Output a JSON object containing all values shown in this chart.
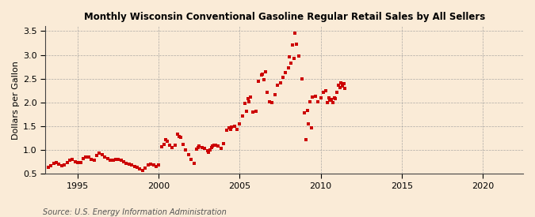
{
  "title": "Monthly Wisconsin Conventional Gasoline Regular Retail Sales by All Sellers",
  "ylabel": "Dollars per Gallon",
  "source": "Source: U.S. Energy Information Administration",
  "background_color": "#faebd7",
  "marker_color": "#cc0000",
  "xlim": [
    1993.0,
    2022.5
  ],
  "ylim": [
    0.5,
    3.6
  ],
  "yticks": [
    0.5,
    1.0,
    1.5,
    2.0,
    2.5,
    3.0,
    3.5
  ],
  "xticks": [
    1995,
    2000,
    2005,
    2010,
    2015,
    2020
  ],
  "data": [
    [
      1993.17,
      0.63
    ],
    [
      1993.33,
      0.67
    ],
    [
      1993.5,
      0.72
    ],
    [
      1993.67,
      0.74
    ],
    [
      1993.83,
      0.7
    ],
    [
      1994.0,
      0.67
    ],
    [
      1994.17,
      0.68
    ],
    [
      1994.33,
      0.73
    ],
    [
      1994.5,
      0.79
    ],
    [
      1994.67,
      0.8
    ],
    [
      1994.83,
      0.76
    ],
    [
      1995.0,
      0.73
    ],
    [
      1995.17,
      0.74
    ],
    [
      1995.33,
      0.82
    ],
    [
      1995.5,
      0.86
    ],
    [
      1995.67,
      0.85
    ],
    [
      1995.83,
      0.81
    ],
    [
      1996.0,
      0.79
    ],
    [
      1996.17,
      0.88
    ],
    [
      1996.33,
      0.94
    ],
    [
      1996.5,
      0.9
    ],
    [
      1996.67,
      0.86
    ],
    [
      1996.83,
      0.82
    ],
    [
      1997.0,
      0.79
    ],
    [
      1997.17,
      0.78
    ],
    [
      1997.33,
      0.8
    ],
    [
      1997.5,
      0.8
    ],
    [
      1997.67,
      0.79
    ],
    [
      1997.83,
      0.75
    ],
    [
      1998.0,
      0.72
    ],
    [
      1998.17,
      0.7
    ],
    [
      1998.33,
      0.69
    ],
    [
      1998.5,
      0.66
    ],
    [
      1998.67,
      0.63
    ],
    [
      1998.83,
      0.61
    ],
    [
      1999.0,
      0.57
    ],
    [
      1999.17,
      0.62
    ],
    [
      1999.33,
      0.69
    ],
    [
      1999.5,
      0.71
    ],
    [
      1999.67,
      0.68
    ],
    [
      1999.83,
      0.66
    ],
    [
      2000.0,
      0.69
    ],
    [
      2000.17,
      1.07
    ],
    [
      2000.33,
      1.12
    ],
    [
      2000.5,
      1.18
    ],
    [
      2000.67,
      1.1
    ],
    [
      2000.83,
      1.06
    ],
    [
      2001.0,
      1.1
    ],
    [
      2001.17,
      1.33
    ],
    [
      2001.33,
      1.27
    ],
    [
      2001.5,
      1.12
    ],
    [
      2001.67,
      1.0
    ],
    [
      2001.83,
      0.9
    ],
    [
      2002.0,
      0.8
    ],
    [
      2002.17,
      0.72
    ],
    [
      2002.33,
      1.02
    ],
    [
      2002.5,
      1.08
    ],
    [
      2002.67,
      1.06
    ],
    [
      2002.83,
      1.03
    ],
    [
      2003.0,
      0.99
    ],
    [
      2003.08,
      0.96
    ],
    [
      2003.17,
      1.0
    ],
    [
      2003.25,
      1.05
    ],
    [
      2003.33,
      1.09
    ],
    [
      2003.5,
      1.1
    ],
    [
      2003.67,
      1.08
    ],
    [
      2003.83,
      1.04
    ],
    [
      2004.0,
      1.13
    ],
    [
      2004.17,
      1.42
    ],
    [
      2004.33,
      1.46
    ],
    [
      2004.5,
      1.48
    ],
    [
      2004.67,
      1.5
    ],
    [
      2004.83,
      1.44
    ],
    [
      2005.0,
      1.55
    ],
    [
      2005.17,
      1.72
    ],
    [
      2005.33,
      1.98
    ],
    [
      2005.5,
      2.08
    ],
    [
      2005.67,
      2.12
    ],
    [
      2005.83,
      1.8
    ],
    [
      2006.0,
      1.82
    ],
    [
      2006.17,
      2.44
    ],
    [
      2006.33,
      2.58
    ],
    [
      2006.5,
      2.48
    ],
    [
      2006.67,
      2.22
    ],
    [
      2006.83,
      2.01
    ],
    [
      2007.0,
      2.0
    ],
    [
      2007.17,
      2.17
    ],
    [
      2007.33,
      2.37
    ],
    [
      2007.5,
      2.42
    ],
    [
      2007.67,
      2.52
    ],
    [
      2007.83,
      2.62
    ],
    [
      2008.0,
      2.72
    ],
    [
      2008.17,
      2.82
    ],
    [
      2008.33,
      2.93
    ],
    [
      2008.42,
      3.45
    ],
    [
      2008.5,
      3.22
    ],
    [
      2008.67,
      2.98
    ],
    [
      2008.83,
      2.5
    ],
    [
      2009.0,
      1.78
    ],
    [
      2009.17,
      1.83
    ],
    [
      2009.33,
      2.02
    ],
    [
      2009.5,
      2.12
    ],
    [
      2009.67,
      2.13
    ],
    [
      2009.83,
      2.02
    ],
    [
      2010.0,
      2.1
    ],
    [
      2010.17,
      2.22
    ],
    [
      2010.33,
      2.24
    ],
    [
      2010.5,
      2.1
    ],
    [
      2010.67,
      2.07
    ],
    [
      2010.83,
      2.1
    ],
    [
      2011.0,
      2.22
    ],
    [
      2011.17,
      2.32
    ],
    [
      2011.33,
      2.34
    ],
    [
      2011.5,
      2.3
    ],
    [
      2009.25,
      1.55
    ],
    [
      2009.42,
      1.47
    ],
    [
      2009.08,
      1.22
    ],
    [
      2010.42,
      2.0
    ],
    [
      2010.58,
      2.04
    ],
    [
      2011.08,
      2.37
    ],
    [
      2011.25,
      2.42
    ],
    [
      2006.58,
      2.65
    ],
    [
      2006.42,
      2.6
    ],
    [
      2005.58,
      2.02
    ],
    [
      2005.42,
      1.82
    ],
    [
      2004.42,
      1.44
    ],
    [
      2003.42,
      1.1
    ],
    [
      2002.42,
      1.06
    ],
    [
      2001.25,
      1.28
    ],
    [
      2000.42,
      1.22
    ],
    [
      2010.75,
      2.0
    ],
    [
      2010.92,
      2.08
    ],
    [
      2011.42,
      2.4
    ],
    [
      2008.25,
      3.2
    ],
    [
      2008.08,
      2.96
    ]
  ]
}
